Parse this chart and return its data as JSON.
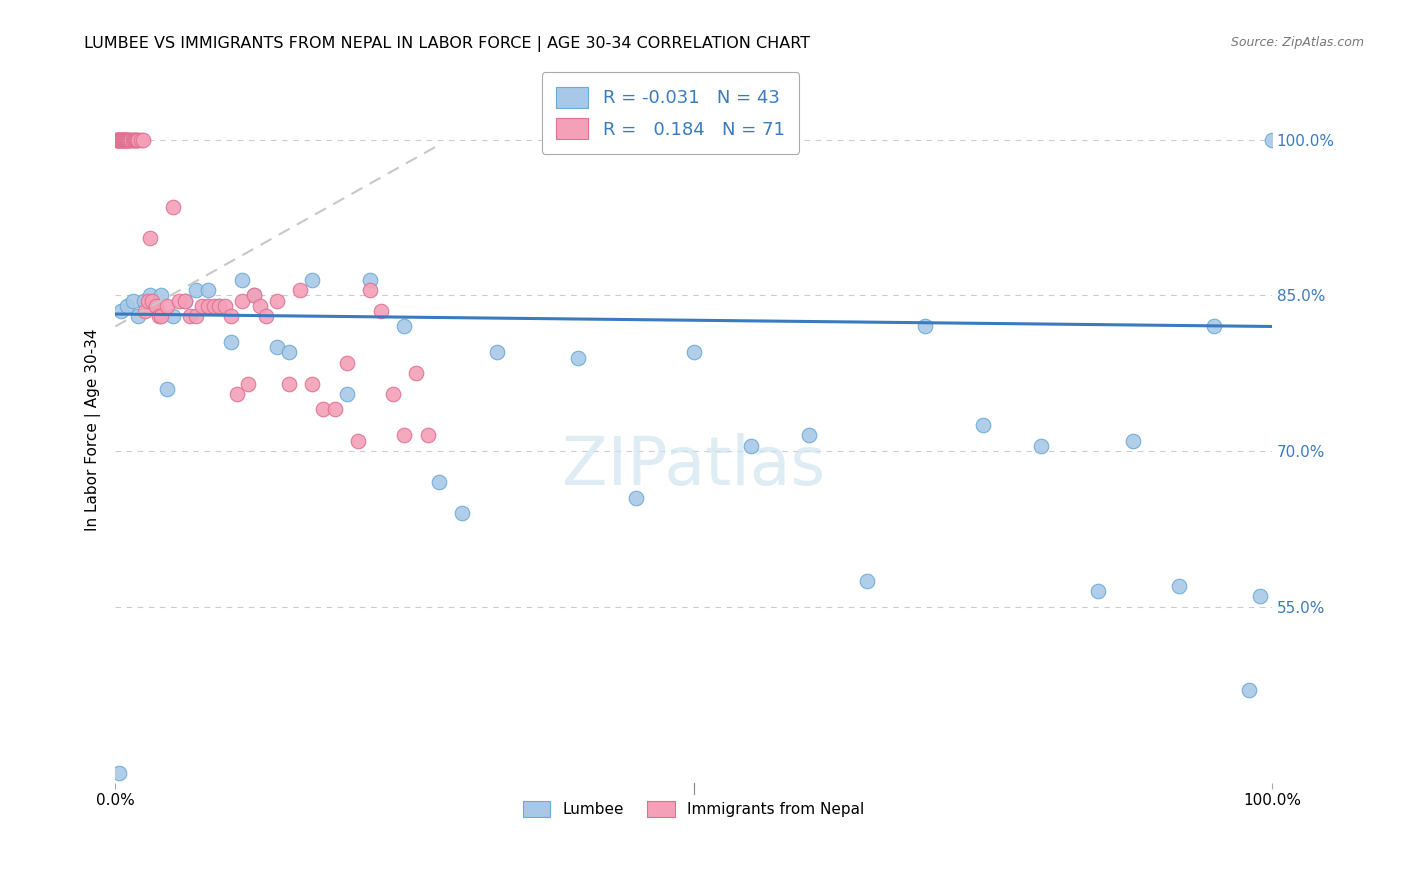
{
  "title": "LUMBEE VS IMMIGRANTS FROM NEPAL IN LABOR FORCE | AGE 30-34 CORRELATION CHART",
  "source": "Source: ZipAtlas.com",
  "ylabel": "In Labor Force | Age 30-34",
  "legend_blue_R": "-0.031",
  "legend_blue_N": "43",
  "legend_pink_R": "0.184",
  "legend_pink_N": "71",
  "legend_blue_label": "Lumbee",
  "legend_pink_label": "Immigrants from Nepal",
  "blue_color": "#a8c8e8",
  "pink_color": "#f4a0b8",
  "trendline_blue_color": "#3a7bbf",
  "trendline_pink_color": "#c8c8c8",
  "yaxis_ticks": [
    55.0,
    70.0,
    85.0,
    100.0
  ],
  "xlim": [
    0,
    100
  ],
  "ylim": [
    38,
    106
  ],
  "blue_x": [
    0.3,
    0.5,
    1.0,
    1.5,
    2.0,
    2.5,
    3.0,
    3.5,
    4.0,
    4.5,
    5.0,
    6.0,
    7.0,
    8.0,
    9.0,
    10.0,
    11.0,
    12.0,
    14.0,
    15.0,
    17.0,
    20.0,
    22.0,
    25.0,
    28.0,
    30.0,
    33.0,
    40.0,
    45.0,
    50.0,
    55.0,
    60.0,
    65.0,
    70.0,
    75.0,
    80.0,
    85.0,
    88.0,
    92.0,
    95.0,
    98.0,
    99.0,
    100.0
  ],
  "blue_y": [
    39.0,
    83.5,
    84.0,
    84.5,
    83.0,
    84.5,
    85.0,
    84.0,
    85.0,
    76.0,
    83.0,
    84.5,
    85.5,
    85.5,
    84.0,
    80.5,
    86.5,
    85.0,
    80.0,
    79.5,
    86.5,
    75.5,
    86.5,
    82.0,
    67.0,
    64.0,
    79.5,
    79.0,
    65.5,
    79.5,
    70.5,
    71.5,
    57.5,
    82.0,
    72.5,
    70.5,
    56.5,
    71.0,
    57.0,
    82.0,
    47.0,
    56.0,
    100.0
  ],
  "pink_x": [
    0.1,
    0.15,
    0.2,
    0.25,
    0.3,
    0.35,
    0.4,
    0.45,
    0.5,
    0.55,
    0.6,
    0.65,
    0.7,
    0.75,
    0.8,
    0.85,
    0.9,
    0.95,
    1.0,
    1.05,
    1.1,
    1.2,
    1.3,
    1.4,
    1.5,
    1.6,
    1.7,
    1.8,
    1.9,
    2.0,
    2.2,
    2.4,
    2.6,
    2.8,
    3.0,
    3.2,
    3.5,
    3.8,
    4.0,
    4.5,
    5.0,
    5.5,
    6.0,
    6.5,
    7.0,
    7.5,
    8.0,
    8.5,
    9.0,
    9.5,
    10.0,
    10.5,
    11.0,
    11.5,
    12.0,
    12.5,
    13.0,
    14.0,
    15.0,
    16.0,
    17.0,
    18.0,
    19.0,
    20.0,
    21.0,
    22.0,
    23.0,
    24.0,
    25.0,
    26.0,
    27.0
  ],
  "pink_y": [
    100.0,
    100.0,
    100.0,
    100.0,
    100.0,
    100.0,
    100.0,
    100.0,
    100.0,
    100.0,
    100.0,
    100.0,
    100.0,
    100.0,
    100.0,
    100.0,
    100.0,
    100.0,
    100.0,
    100.0,
    100.0,
    100.0,
    100.0,
    100.0,
    100.0,
    100.0,
    100.0,
    100.0,
    100.0,
    100.0,
    100.0,
    100.0,
    83.5,
    84.5,
    90.5,
    84.5,
    84.0,
    83.0,
    83.0,
    84.0,
    93.5,
    84.5,
    84.5,
    83.0,
    83.0,
    84.0,
    84.0,
    84.0,
    84.0,
    84.0,
    83.0,
    75.5,
    84.5,
    76.5,
    85.0,
    84.0,
    83.0,
    84.5,
    76.5,
    85.5,
    76.5,
    74.0,
    74.0,
    78.5,
    71.0,
    85.5,
    83.5,
    75.5,
    71.5,
    77.5,
    71.5
  ],
  "trendline_blue_x0": 0,
  "trendline_blue_x1": 100,
  "trendline_blue_y0": 83.2,
  "trendline_blue_y1": 82.0,
  "trendline_pink_x0": 0,
  "trendline_pink_x1": 28,
  "trendline_pink_y0": 82.0,
  "trendline_pink_y1": 99.5
}
